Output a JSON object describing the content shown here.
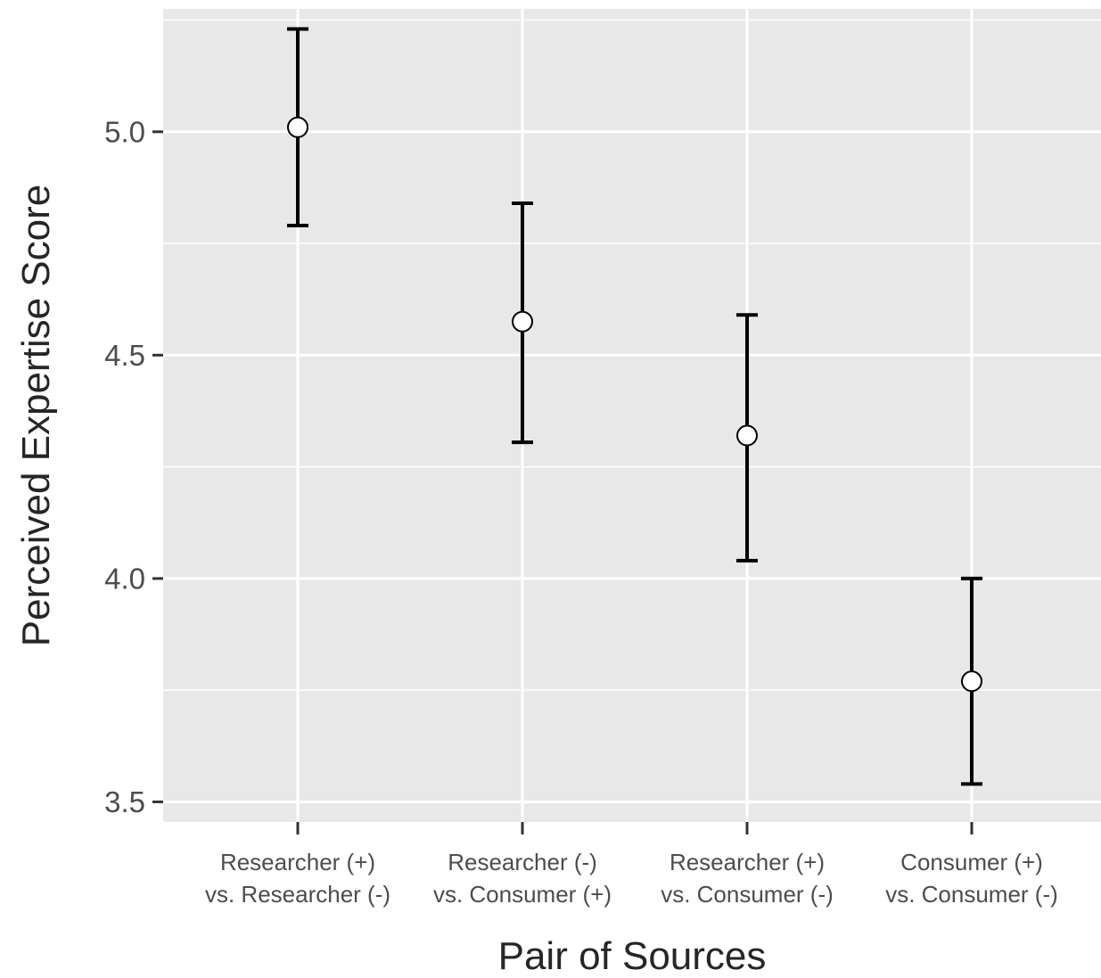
{
  "chart_data": {
    "type": "scatter",
    "title": "",
    "xlabel": "Pair of Sources",
    "ylabel": "Perceived Expertise Score",
    "categories": [
      [
        "Researcher (+)",
        "vs. Researcher (-)"
      ],
      [
        "Researcher (-)",
        "vs. Consumer (+)"
      ],
      [
        "Researcher (+)",
        "vs. Consumer (-)"
      ],
      [
        "Consumer (+)",
        "vs. Consumer (-)"
      ]
    ],
    "series": [
      {
        "values": [
          5.01,
          4.575,
          4.32,
          3.77
        ],
        "error_low": [
          4.79,
          4.305,
          4.04,
          3.54
        ],
        "error_high": [
          5.23,
          4.84,
          4.59,
          4.0
        ]
      }
    ],
    "ylim": [
      3.455,
      5.275
    ],
    "yticks": [
      3.5,
      4.0,
      4.5,
      5.0
    ],
    "ytick_labels": [
      "3.5",
      "4.0",
      "4.5",
      "5.0"
    ],
    "grid": true,
    "colors": {
      "panel_background": "#e8e8e8",
      "grid": "#ffffff",
      "error_bar": "#000000",
      "point_fill": "#ffffff",
      "point_stroke": "#000000",
      "axis_tick": "#333333",
      "tick_label": "#4d4d4d",
      "axis_title": "#262626"
    }
  }
}
